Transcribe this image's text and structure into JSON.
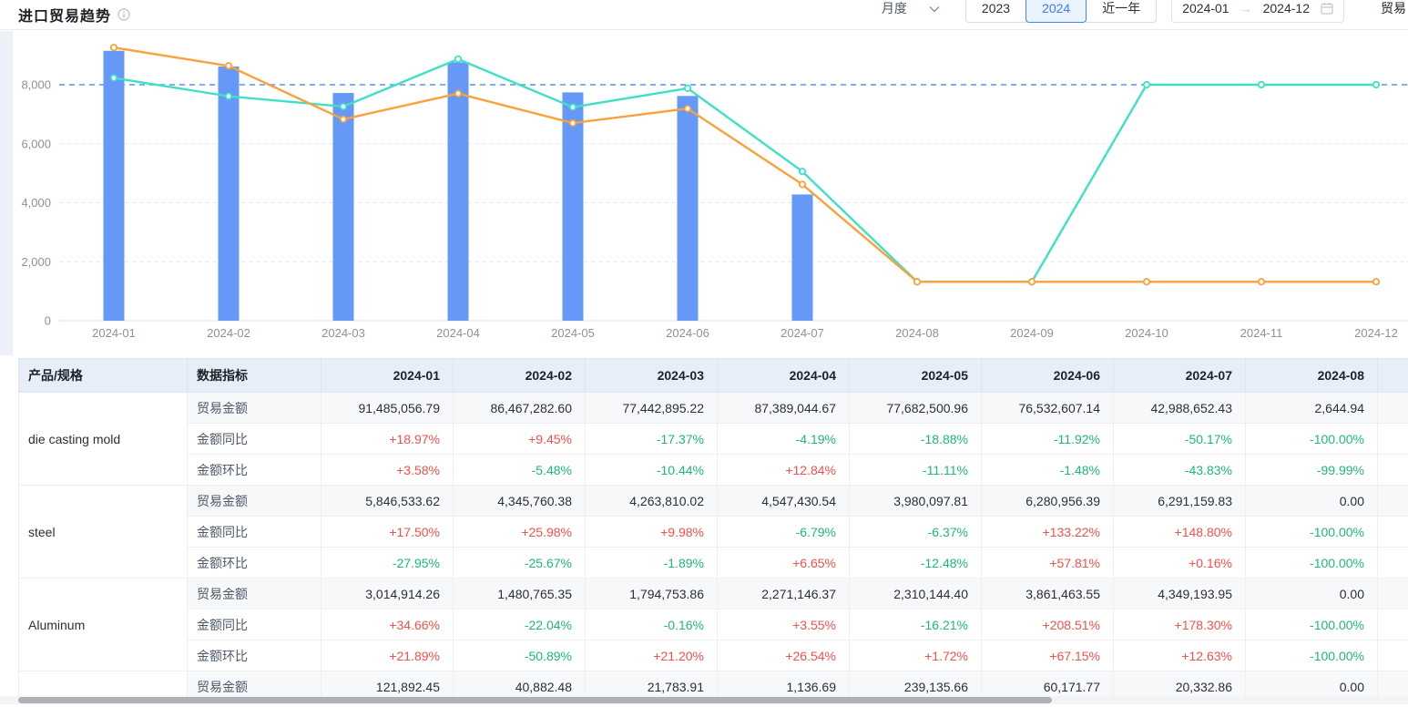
{
  "header": {
    "title": "进口贸易趋势",
    "period_select": {
      "value": "月度"
    },
    "year_switch": {
      "options": [
        "2023",
        "2024",
        "近一年"
      ],
      "selected": "2024"
    },
    "date_range": {
      "start": "2024-01",
      "end": "2024-12"
    },
    "right_partial_label": "贸易"
  },
  "colors": {
    "bar": "#6598F7",
    "line_teal": "#3FE0C6",
    "line_orange": "#F7A23C",
    "markline_blue": "#5B8FF9",
    "positive_red": "#F3504A",
    "negative_green": "#1DB87A",
    "accent_blue": "#3D7EF8"
  },
  "chart_data": {
    "type": "bar+line",
    "title": "进口贸易趋势",
    "categories": [
      "2024-01",
      "2024-02",
      "2024-03",
      "2024-04",
      "2024-05",
      "2024-06",
      "2024-07",
      "2024-08",
      "2024-09",
      "2024-10",
      "2024-11",
      "2024-12"
    ],
    "yticks": [
      0,
      2000,
      4000,
      6000,
      8000
    ],
    "ytick_labels": [
      "0",
      "2,000",
      "4,000",
      "6,000",
      "8,000"
    ],
    "ylim": [
      0,
      9600
    ],
    "grid": true,
    "legend": "none",
    "markline": {
      "value": 8000,
      "color": "#5B8FF9"
    },
    "series": [
      {
        "name": "bar-series",
        "type": "bar",
        "color": "#6598F7",
        "values": [
          9150,
          8620,
          7720,
          8760,
          7740,
          7620,
          4280,
          null,
          null,
          null,
          null,
          null
        ]
      },
      {
        "name": "line-series-teal",
        "type": "line",
        "color": "#3FE0C6",
        "values": [
          8230,
          7610,
          7260,
          8870,
          7240,
          7880,
          5060,
          1320,
          1320,
          8000,
          8000,
          8000
        ]
      },
      {
        "name": "line-series-orange",
        "type": "line",
        "color": "#F7A23C",
        "values": [
          9260,
          8640,
          6830,
          7700,
          6700,
          7190,
          4620,
          1320,
          1320,
          1320,
          1320,
          1320
        ]
      }
    ]
  },
  "table": {
    "headers": {
      "product": "产品/规格",
      "metric": "数据指标",
      "months": [
        "2024-01",
        "2024-02",
        "2024-03",
        "2024-04",
        "2024-05",
        "2024-06",
        "2024-07",
        "2024-08"
      ]
    },
    "groups": [
      {
        "product": "die casting mold",
        "rows": [
          {
            "metric": "贸易金额",
            "values": [
              "91,485,056.79",
              "86,467,282.60",
              "77,442,895.22",
              "87,389,044.67",
              "77,682,500.96",
              "76,532,607.14",
              "42,988,652.43",
              "2,644.94"
            ]
          },
          {
            "metric": "金额同比",
            "values": [
              "+18.97%",
              "+9.45%",
              "-17.37%",
              "-4.19%",
              "-18.88%",
              "-11.92%",
              "-50.17%",
              "-100.00%"
            ]
          },
          {
            "metric": "金额环比",
            "values": [
              "+3.58%",
              "-5.48%",
              "-10.44%",
              "+12.84%",
              "-11.11%",
              "-1.48%",
              "-43.83%",
              "-99.99%"
            ]
          }
        ]
      },
      {
        "product": "steel",
        "rows": [
          {
            "metric": "贸易金额",
            "values": [
              "5,846,533.62",
              "4,345,760.38",
              "4,263,810.02",
              "4,547,430.54",
              "3,980,097.81",
              "6,280,956.39",
              "6,291,159.83",
              "0.00"
            ]
          },
          {
            "metric": "金额同比",
            "values": [
              "+17.50%",
              "+25.98%",
              "+9.98%",
              "-6.79%",
              "-6.37%",
              "+133.22%",
              "+148.80%",
              "-100.00%"
            ]
          },
          {
            "metric": "金额环比",
            "values": [
              "-27.95%",
              "-25.67%",
              "-1.89%",
              "+6.65%",
              "-12.48%",
              "+57.81%",
              "+0.16%",
              "-100.00%"
            ]
          }
        ]
      },
      {
        "product": "Aluminum",
        "rows": [
          {
            "metric": "贸易金额",
            "values": [
              "3,014,914.26",
              "1,480,765.35",
              "1,794,753.86",
              "2,271,146.37",
              "2,310,144.40",
              "3,861,463.55",
              "4,349,193.95",
              "0.00"
            ]
          },
          {
            "metric": "金额同比",
            "values": [
              "+34.66%",
              "-22.04%",
              "-0.16%",
              "+3.55%",
              "-16.21%",
              "+208.51%",
              "+178.30%",
              "-100.00%"
            ]
          },
          {
            "metric": "金额环比",
            "values": [
              "+21.89%",
              "-50.89%",
              "+21.20%",
              "+26.54%",
              "+1.72%",
              "+67.15%",
              "+12.63%",
              "-100.00%"
            ]
          }
        ]
      },
      {
        "product": "",
        "rows": [
          {
            "metric": "贸易金额",
            "values": [
              "121,892.45",
              "40,882.48",
              "21,783.91",
              "1,136.69",
              "239,135.66",
              "60,171.77",
              "20,332.86",
              "0.00"
            ]
          }
        ]
      }
    ]
  }
}
